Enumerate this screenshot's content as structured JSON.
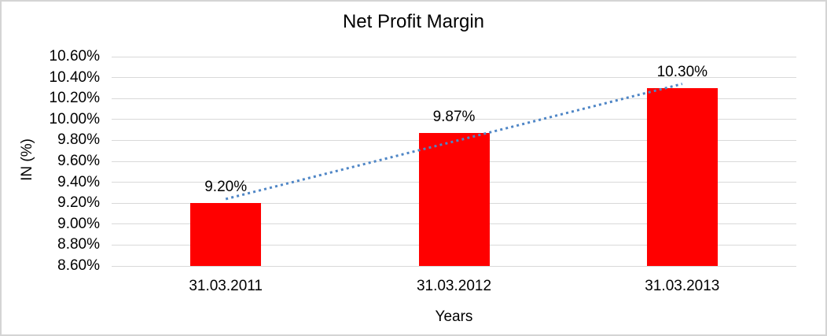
{
  "chart_data": {
    "type": "bar",
    "title": "Net Profit Margin",
    "categories": [
      "31.03.2011",
      "31.03.2012",
      "31.03.2013"
    ],
    "values": [
      9.2,
      9.87,
      10.3
    ],
    "data_labels": [
      "9.20%",
      "9.87%",
      "10.30%"
    ],
    "xlabel": "Years",
    "ylabel": "IN (%)",
    "ylim": [
      8.6,
      10.6
    ],
    "y_tick_step": 0.2,
    "y_tick_labels": [
      "8.60%",
      "8.80%",
      "9.00%",
      "9.20%",
      "9.40%",
      "9.60%",
      "9.80%",
      "10.00%",
      "10.20%",
      "10.40%",
      "10.60%"
    ],
    "grid": true,
    "legend_position": "none",
    "colors": {
      "bar": "#ff0000",
      "gridline": "#d9d9d9",
      "trendline": "#4f86c6",
      "text": "#000000",
      "frame_border": "#d4d4d4"
    },
    "trendline": {
      "type": "linear",
      "style": "dotted"
    }
  }
}
